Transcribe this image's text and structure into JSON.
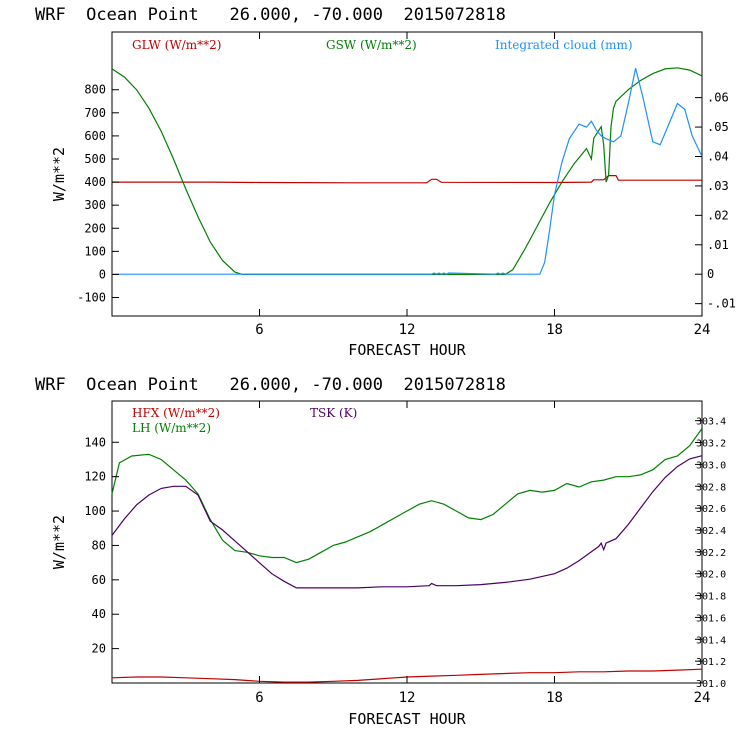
{
  "chart_data": [
    {
      "type": "line",
      "title": "WRF  Ocean Point   26.000, -70.000  2015072818",
      "xlabel": "FORECAST HOUR",
      "ylabel": "W/m**2",
      "xlim": [
        0,
        24
      ],
      "ylim": [
        -180,
        1050
      ],
      "y2lim": [
        -0.0142,
        0.0823
      ],
      "x_ticks": [
        6,
        12,
        18,
        24
      ],
      "y_ticks": [
        -100,
        0,
        100,
        200,
        300,
        400,
        500,
        600,
        700,
        800
      ],
      "y_tick_labels": [
        "-100",
        "0",
        "100",
        "200",
        "300",
        "400",
        "500",
        "600",
        "700",
        "800"
      ],
      "y2_ticks": [
        -0.01,
        0,
        0.01,
        0.02,
        0.03,
        0.04,
        0.05,
        0.06
      ],
      "y2_tick_labels": [
        "-.01",
        "0",
        ".01",
        ".02",
        ".03",
        ".04",
        ".05",
        ".06"
      ],
      "series": [
        {
          "name": "GLW (W/m**2)",
          "color": "#c00000",
          "axis": "left",
          "x": [
            0,
            4,
            6,
            10,
            12.8,
            13,
            13.2,
            13.4,
            18,
            19.5,
            19.6,
            20,
            20.2,
            20.5,
            20.6,
            24
          ],
          "y": [
            400,
            400,
            398,
            397,
            397,
            412,
            412,
            399,
            398,
            400,
            410,
            410,
            428,
            428,
            408,
            408
          ]
        },
        {
          "name": "GSW (W/m**2)",
          "color": "#008000",
          "axis": "left",
          "x": [
            0,
            0.5,
            1,
            1.5,
            2,
            2.5,
            3,
            3.5,
            4,
            4.5,
            5,
            5.3,
            6,
            16,
            16.3,
            16.8,
            17.3,
            17.8,
            18.3,
            18.8,
            19.3,
            19.5,
            19.6,
            19.9,
            20,
            20.1,
            20.2,
            20.3,
            20.4,
            20.5,
            21,
            21.5,
            22,
            22.5,
            23,
            23.5,
            24
          ],
          "y": [
            890,
            855,
            800,
            720,
            620,
            500,
            370,
            250,
            140,
            60,
            10,
            0,
            0,
            0,
            20,
            110,
            210,
            310,
            400,
            480,
            545,
            500,
            590,
            640,
            560,
            400,
            430,
            640,
            720,
            750,
            800,
            840,
            870,
            890,
            895,
            885,
            860
          ]
        },
        {
          "name": "Integrated cloud (mm)",
          "color": "#1e90ff",
          "axis": "right",
          "x": [
            0,
            13,
            13.1,
            13.2,
            13.3,
            13.4,
            13.5,
            13.6,
            13.7,
            15.6,
            15.7,
            15.8,
            15.9,
            16,
            17.4,
            17.6,
            17.8,
            18,
            18.3,
            18.6,
            19,
            19.3,
            19.5,
            19.7,
            19.9,
            20.1,
            20.4,
            20.7,
            21,
            21.3,
            21.6,
            22,
            22.3,
            22.6,
            23,
            23.3,
            23.6,
            24
          ],
          "y": [
            0,
            0,
            0.0004,
            0,
            0.0004,
            0,
            0.0004,
            0,
            0.0004,
            0,
            0.0004,
            0,
            0.0004,
            0,
            0,
            0.004,
            0.015,
            0.027,
            0.038,
            0.046,
            0.051,
            0.05,
            0.052,
            0.049,
            0.047,
            0.046,
            0.045,
            0.047,
            0.058,
            0.07,
            0.06,
            0.045,
            0.044,
            0.05,
            0.058,
            0.056,
            0.047,
            0.04
          ]
        }
      ]
    },
    {
      "type": "line",
      "title": "WRF  Ocean Point   26.000, -70.000  2015072818",
      "xlabel": "FORECAST HOUR",
      "ylabel": "W/m**2",
      "xlim": [
        0,
        24
      ],
      "ylim": [
        0,
        164
      ],
      "y2lim": [
        301.0,
        303.58
      ],
      "x_ticks": [
        6,
        12,
        18,
        24
      ],
      "y_ticks": [
        20,
        40,
        60,
        80,
        100,
        120,
        140
      ],
      "y_tick_labels": [
        "20",
        "40",
        "60",
        "80",
        "100",
        "120",
        "140"
      ],
      "y2_ticks": [
        301.0,
        301.2,
        301.4,
        301.6,
        301.8,
        302.0,
        302.2,
        302.4,
        302.6,
        302.8,
        303.0,
        303.2,
        303.4
      ],
      "y2_tick_labels": [
        "301.0",
        "301.2",
        "301.4",
        "301.6",
        "301.8",
        "302.0",
        "302.2",
        "302.4",
        "302.6",
        "302.8",
        "303.0",
        "303.2",
        "303.4"
      ],
      "series": [
        {
          "name": "HFX (W/m**2)",
          "color": "#c00000",
          "axis": "left",
          "x": [
            0,
            1,
            2,
            3,
            4,
            5,
            6,
            7,
            8,
            9,
            10,
            11,
            12,
            13,
            14,
            15,
            16,
            17,
            18,
            19,
            20,
            21,
            22,
            23,
            24
          ],
          "y": [
            3,
            3.5,
            3.5,
            3,
            2.5,
            2,
            1,
            0.5,
            0.5,
            1,
            1.5,
            2.5,
            3.5,
            4,
            4.5,
            5,
            5.5,
            6,
            6,
            6.5,
            6.5,
            7,
            7,
            7.5,
            8
          ]
        },
        {
          "name": "LH (W/m**2)",
          "color": "#008000",
          "axis": "left",
          "x": [
            0,
            0.3,
            0.8,
            1.5,
            2,
            2.5,
            3,
            3.5,
            4,
            4.5,
            5,
            5.5,
            6,
            6.5,
            7,
            7.5,
            8,
            8.5,
            9,
            9.5,
            10,
            10.5,
            11,
            11.5,
            12,
            12.5,
            13,
            13.5,
            14,
            14.5,
            15,
            15.5,
            16,
            16.5,
            17,
            17.5,
            18,
            18.5,
            19,
            19.5,
            20,
            20.5,
            21,
            21.5,
            22,
            22.5,
            23,
            23.5,
            24
          ],
          "y": [
            110,
            128,
            132,
            133,
            130,
            124,
            118,
            110,
            95,
            83,
            77,
            76,
            74,
            73,
            73,
            70,
            72,
            76,
            80,
            82,
            85,
            88,
            92,
            96,
            100,
            104,
            106,
            104,
            100,
            96,
            95,
            98,
            104,
            110,
            112,
            111,
            112,
            116,
            114,
            117,
            118,
            120,
            120,
            121,
            124,
            130,
            132,
            138,
            148
          ]
        },
        {
          "name": "TSK (K)",
          "color": "#4b0060",
          "axis": "right",
          "x": [
            0,
            0.5,
            1,
            1.5,
            2,
            2.5,
            3,
            3.5,
            4,
            4.5,
            5,
            5.5,
            6,
            6.5,
            7,
            7.5,
            8,
            9,
            10,
            11,
            12,
            12.9,
            13,
            13.2,
            14,
            15,
            16,
            17,
            18,
            18.5,
            19,
            19.5,
            19.8,
            19.9,
            20,
            20.1,
            20.5,
            21,
            21.5,
            22,
            22.5,
            23,
            23.5,
            24
          ],
          "y": [
            302.35,
            302.5,
            302.63,
            302.72,
            302.78,
            302.8,
            302.8,
            302.72,
            302.48,
            302.4,
            302.3,
            302.2,
            302.1,
            302.0,
            301.93,
            301.87,
            301.87,
            301.87,
            301.87,
            301.88,
            301.88,
            301.89,
            301.91,
            301.89,
            301.89,
            301.9,
            301.92,
            301.95,
            302.0,
            302.05,
            302.12,
            302.2,
            302.25,
            302.28,
            302.22,
            302.28,
            302.32,
            302.45,
            302.6,
            302.75,
            302.88,
            302.98,
            303.05,
            303.08
          ]
        }
      ]
    }
  ]
}
